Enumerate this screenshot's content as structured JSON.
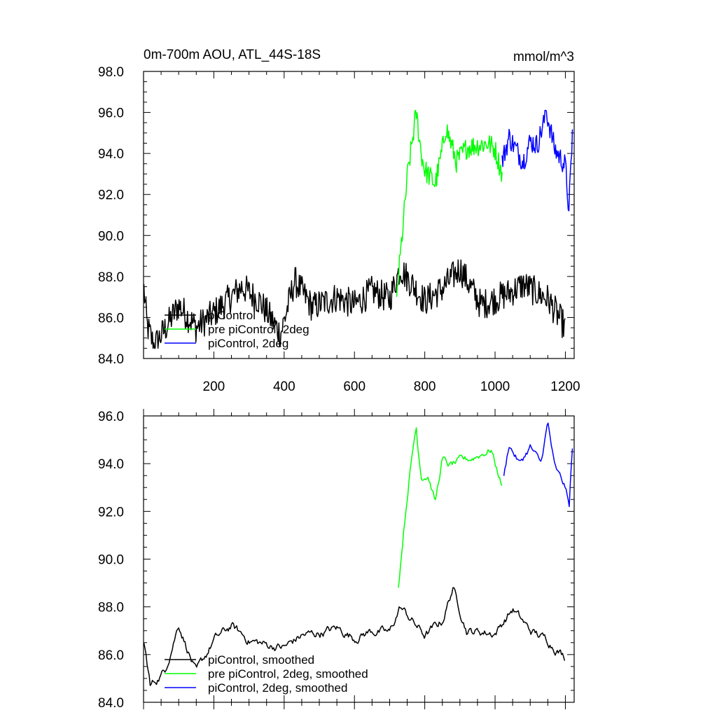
{
  "colors": {
    "black": "#000000",
    "green": "#00ff00",
    "blue": "#0000ff"
  },
  "top": {
    "title_left": "0m-700m AOU, ATL_44S-18S",
    "title_right": "mmol/m^3",
    "legend": [
      "piControl",
      "pre piControl, 2deg",
      "piControl, 2deg"
    ]
  },
  "bottom": {
    "legend": [
      "piControl, smoothed",
      "pre piControl, 2deg, smoothed",
      "piControl, 2deg, smoothed"
    ]
  },
  "chart_data": [
    {
      "type": "line",
      "title": "0m-700m AOU, ATL_44S-18S",
      "units_label": "mmol/m^3",
      "xlim": [
        0,
        1225
      ],
      "ylim": [
        84,
        98
      ],
      "xticks": [
        200,
        400,
        600,
        800,
        1000,
        1200
      ],
      "yticks": [
        84,
        86,
        88,
        90,
        92,
        94,
        96,
        98
      ],
      "ytick_labels": [
        "84.0",
        "86.0",
        "88.0",
        "90.0",
        "92.0",
        "94.0",
        "96.0",
        "98.0"
      ],
      "grid": false,
      "legend_position": "bottom-left",
      "series": [
        {
          "name": "piControl",
          "color": "#000000",
          "x": [
            1,
            1200
          ],
          "approx_mean": 86.7,
          "approx_range": [
            84.5,
            89.0
          ],
          "anchors": [
            [
              1,
              87.4
            ],
            [
              10,
              85.6
            ],
            [
              30,
              84.6
            ],
            [
              60,
              85.4
            ],
            [
              100,
              86.6
            ],
            [
              150,
              85.5
            ],
            [
              200,
              86.2
            ],
            [
              280,
              87.5
            ],
            [
              330,
              86.8
            ],
            [
              390,
              85.2
            ],
            [
              430,
              87.8
            ],
            [
              480,
              86.5
            ],
            [
              550,
              87.0
            ],
            [
              600,
              86.6
            ],
            [
              650,
              87.3
            ],
            [
              700,
              86.9
            ],
            [
              730,
              88.4
            ],
            [
              800,
              86.8
            ],
            [
              850,
              87.4
            ],
            [
              900,
              88.4
            ],
            [
              960,
              86.6
            ],
            [
              1040,
              87.2
            ],
            [
              1080,
              87.6
            ],
            [
              1150,
              86.9
            ],
            [
              1200,
              85.5
            ]
          ]
        },
        {
          "name": "pre piControl, 2deg",
          "color": "#00ff00",
          "x": [
            720,
            1020
          ],
          "approx_range": [
            87.0,
            96.1
          ],
          "anchors": [
            [
              720,
              87.0
            ],
            [
              740,
              90.8
            ],
            [
              750,
              92.8
            ],
            [
              770,
              95.3
            ],
            [
              775,
              96.1
            ],
            [
              790,
              94.0
            ],
            [
              800,
              93.2
            ],
            [
              830,
              92.5
            ],
            [
              850,
              94.2
            ],
            [
              860,
              95.3
            ],
            [
              890,
              93.6
            ],
            [
              920,
              94.3
            ],
            [
              950,
              94.4
            ],
            [
              980,
              94.5
            ],
            [
              1000,
              94.2
            ],
            [
              1020,
              93.0
            ]
          ]
        },
        {
          "name": "piControl, 2deg",
          "color": "#0000ff",
          "x": [
            1020,
            1220
          ],
          "approx_range": [
            91.2,
            96.1
          ],
          "anchors": [
            [
              1020,
              93.6
            ],
            [
              1040,
              94.8
            ],
            [
              1080,
              93.6
            ],
            [
              1100,
              94.6
            ],
            [
              1120,
              94.4
            ],
            [
              1140,
              95.6
            ],
            [
              1145,
              96.1
            ],
            [
              1170,
              94.2
            ],
            [
              1200,
              93.4
            ],
            [
              1210,
              91.2
            ],
            [
              1220,
              95.0
            ]
          ]
        }
      ]
    },
    {
      "type": "line",
      "xlim": [
        0,
        1225
      ],
      "ylim": [
        84,
        96
      ],
      "xticks": [
        200,
        400,
        600,
        800,
        1000,
        1200
      ],
      "yticks": [
        84,
        86,
        88,
        90,
        92,
        94,
        96
      ],
      "ytick_labels": [
        "84.0",
        "86.0",
        "88.0",
        "90.0",
        "92.0",
        "94.0",
        "96.0"
      ],
      "grid": false,
      "legend_position": "bottom-left",
      "series": [
        {
          "name": "piControl, smoothed",
          "color": "#000000",
          "x": [
            1,
            1200
          ],
          "approx_range": [
            84.7,
            88.8
          ],
          "anchors": [
            [
              1,
              86.5
            ],
            [
              20,
              84.7
            ],
            [
              60,
              85.3
            ],
            [
              100,
              87.3
            ],
            [
              150,
              85.2
            ],
            [
              200,
              86.6
            ],
            [
              250,
              87.2
            ],
            [
              300,
              86.6
            ],
            [
              350,
              86.4
            ],
            [
              400,
              86.3
            ],
            [
              450,
              86.8
            ],
            [
              500,
              86.9
            ],
            [
              550,
              87.1
            ],
            [
              600,
              86.7
            ],
            [
              650,
              87.0
            ],
            [
              700,
              86.9
            ],
            [
              730,
              88.0
            ],
            [
              800,
              86.8
            ],
            [
              850,
              87.4
            ],
            [
              880,
              88.8
            ],
            [
              920,
              87.0
            ],
            [
              1000,
              86.9
            ],
            [
              1050,
              87.9
            ],
            [
              1100,
              87.0
            ],
            [
              1150,
              86.6
            ],
            [
              1200,
              85.9
            ]
          ]
        },
        {
          "name": "pre piControl, 2deg, smoothed",
          "color": "#00ff00",
          "x": [
            725,
            1020
          ],
          "approx_range": [
            88.8,
            95.5
          ],
          "anchors": [
            [
              725,
              88.8
            ],
            [
              740,
              91.2
            ],
            [
              755,
              93.3
            ],
            [
              770,
              95.0
            ],
            [
              775,
              95.5
            ],
            [
              790,
              93.5
            ],
            [
              810,
              93.5
            ],
            [
              830,
              92.4
            ],
            [
              850,
              94.2
            ],
            [
              870,
              93.9
            ],
            [
              900,
              94.1
            ],
            [
              930,
              94.2
            ],
            [
              960,
              94.4
            ],
            [
              990,
              94.6
            ],
            [
              1000,
              94.0
            ],
            [
              1020,
              93.1
            ]
          ]
        },
        {
          "name": "piControl, 2deg, smoothed",
          "color": "#0000ff",
          "x": [
            1025,
            1220
          ],
          "approx_range": [
            92.2,
            95.7
          ],
          "anchors": [
            [
              1025,
              93.4
            ],
            [
              1040,
              94.8
            ],
            [
              1070,
              94.0
            ],
            [
              1100,
              94.7
            ],
            [
              1130,
              94.0
            ],
            [
              1150,
              95.7
            ],
            [
              1170,
              93.8
            ],
            [
              1200,
              93.0
            ],
            [
              1210,
              92.2
            ],
            [
              1220,
              94.6
            ]
          ]
        }
      ]
    }
  ]
}
